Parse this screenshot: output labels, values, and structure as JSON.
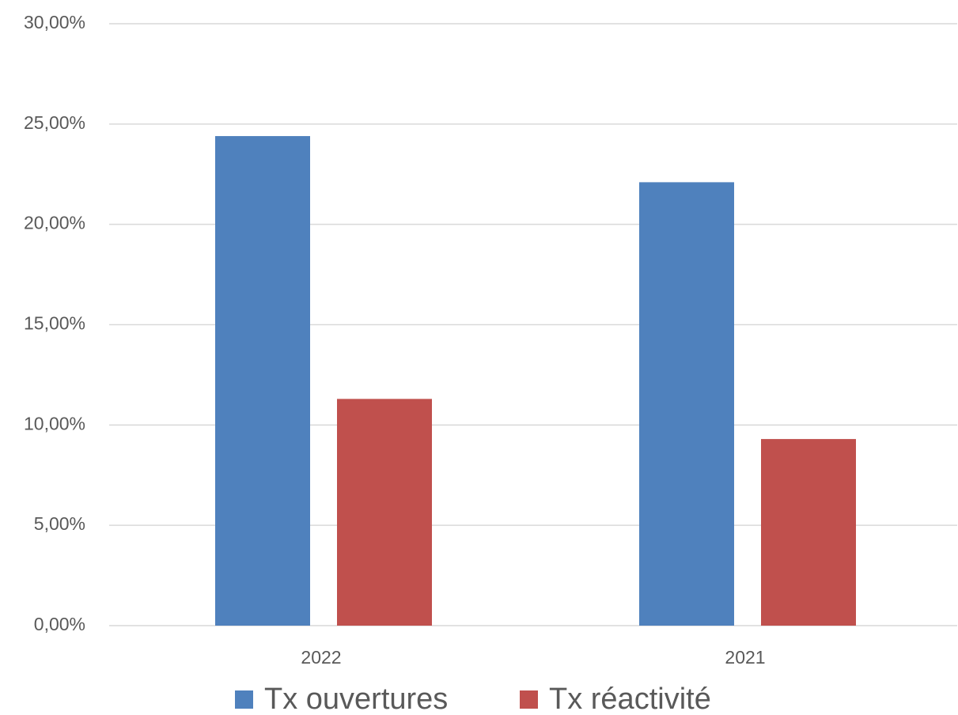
{
  "chart_data": {
    "type": "bar",
    "categories": [
      "2022",
      "2021"
    ],
    "series": [
      {
        "name": "Tx ouvertures",
        "color": "#4f81bd",
        "values": [
          24.4,
          22.1
        ]
      },
      {
        "name": "Tx réactivité",
        "color": "#c0504d",
        "values": [
          11.3,
          9.3
        ]
      }
    ],
    "ylim": [
      0,
      30
    ],
    "yticks": [
      {
        "value": 0,
        "label": "0,00%"
      },
      {
        "value": 5,
        "label": "5,00%"
      },
      {
        "value": 10,
        "label": "10,00%"
      },
      {
        "value": 15,
        "label": "15,00%"
      },
      {
        "value": 20,
        "label": "20,00%"
      },
      {
        "value": 25,
        "label": "25,00%"
      },
      {
        "value": 30,
        "label": "30,00%"
      }
    ],
    "grid": true,
    "legend": "bottom"
  }
}
